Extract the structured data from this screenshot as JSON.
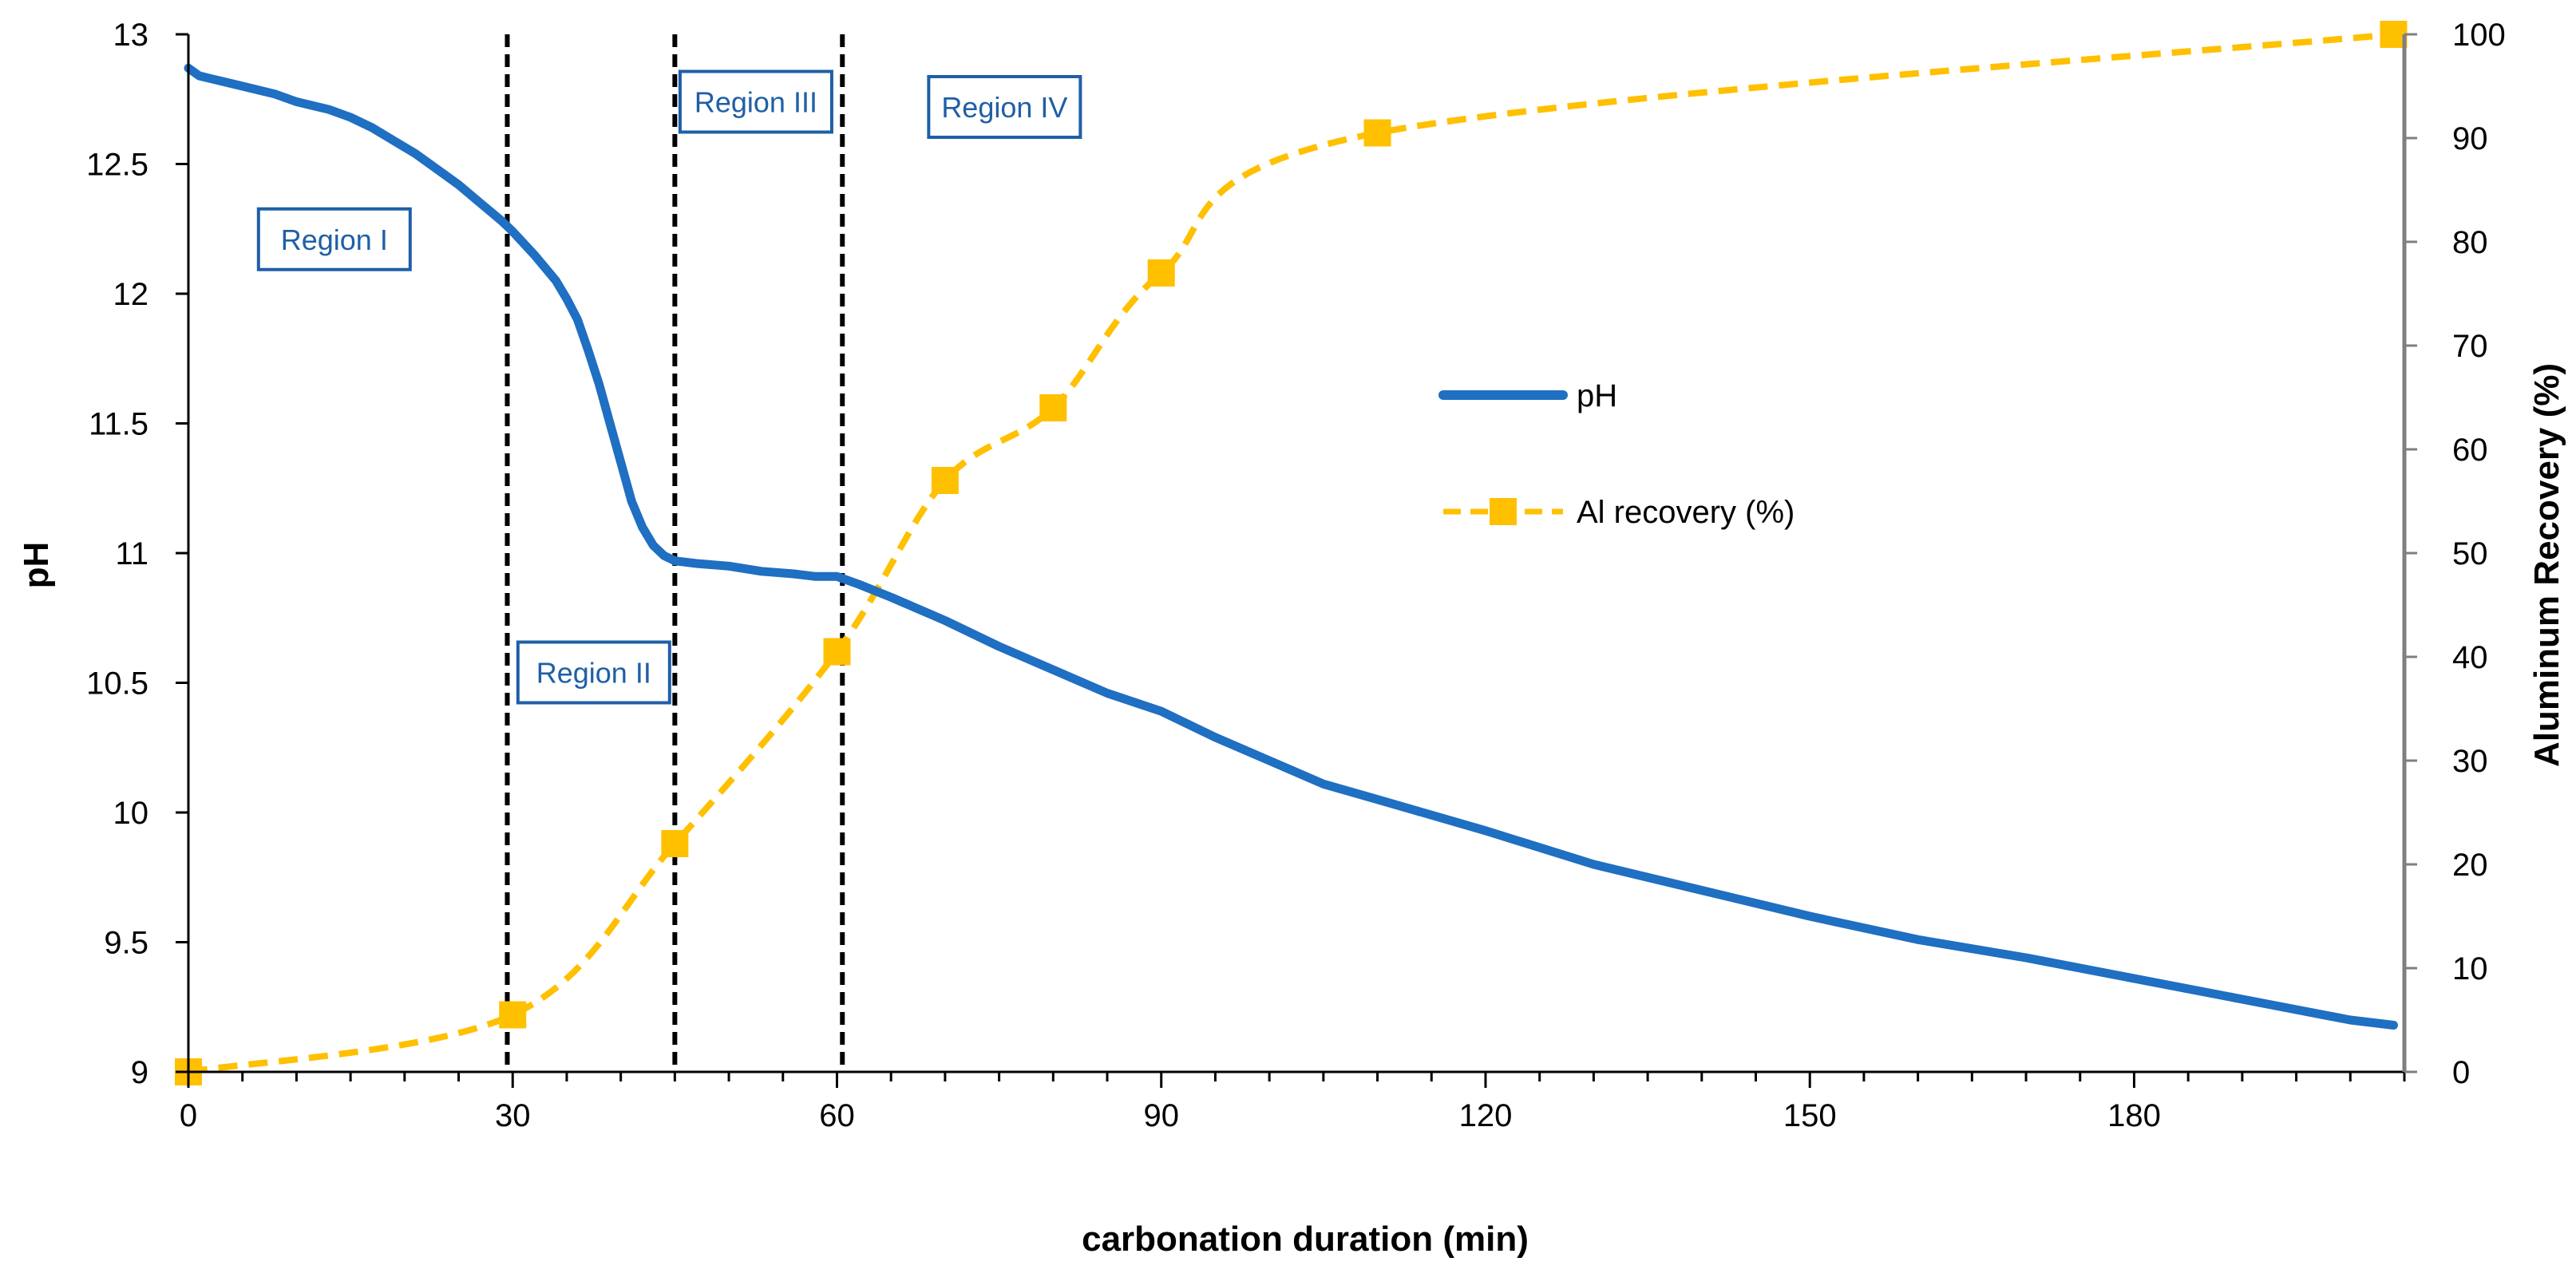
{
  "chart_data": {
    "type": "line",
    "xlabel": "carbonation duration (min)",
    "ylabel_left": "pH",
    "ylabel_right": "Aluminum Recovery (%)",
    "xlim": [
      0,
      205
    ],
    "ylim_left": [
      9,
      13
    ],
    "ylim_right": [
      0,
      100
    ],
    "x_ticks": [
      0,
      30,
      60,
      90,
      120,
      150,
      180
    ],
    "y_left_ticks": [
      9,
      9.5,
      10,
      10.5,
      11,
      11.5,
      12,
      12.5,
      13
    ],
    "y_left_tick_labels": [
      "9",
      "9.5",
      "10",
      "10.5",
      "11",
      "11.5",
      "12",
      "12.5",
      "13"
    ],
    "y_right_ticks": [
      0,
      10,
      20,
      30,
      40,
      50,
      60,
      70,
      80,
      90,
      100
    ],
    "vertical_lines": [
      29.5,
      45,
      60.5
    ],
    "regions": [
      {
        "label": "Region I",
        "x": 13.5,
        "y": 12.21
      },
      {
        "label": "Region II",
        "x": 37.5,
        "y": 10.54
      },
      {
        "label": "Region III",
        "x": 52.5,
        "y": 12.74
      },
      {
        "label": "Region IV",
        "x": 75.5,
        "y": 12.72
      }
    ],
    "series": [
      {
        "name": "pH",
        "axis": "left",
        "color": "#1f6fc2",
        "style": "solid",
        "x": [
          0,
          1,
          2,
          3,
          5,
          8,
          10,
          13,
          15,
          17,
          19,
          21,
          23,
          25,
          27,
          29,
          30,
          32,
          34,
          35,
          36,
          37,
          38,
          39,
          40,
          41,
          42,
          43,
          44,
          45,
          47,
          50,
          53,
          56,
          58,
          60,
          62,
          65,
          70,
          75,
          80,
          85,
          90,
          95,
          100,
          105,
          110,
          120,
          130,
          140,
          150,
          160,
          170,
          180,
          190,
          200,
          204
        ],
        "y": [
          12.87,
          12.84,
          12.83,
          12.82,
          12.8,
          12.77,
          12.74,
          12.71,
          12.68,
          12.64,
          12.59,
          12.54,
          12.48,
          12.42,
          12.35,
          12.28,
          12.24,
          12.15,
          12.05,
          11.98,
          11.9,
          11.78,
          11.65,
          11.5,
          11.35,
          11.2,
          11.1,
          11.03,
          10.99,
          10.97,
          10.96,
          10.95,
          10.93,
          10.92,
          10.91,
          10.91,
          10.88,
          10.83,
          10.74,
          10.64,
          10.55,
          10.46,
          10.39,
          10.29,
          10.2,
          10.11,
          10.05,
          9.93,
          9.8,
          9.7,
          9.6,
          9.51,
          9.44,
          9.36,
          9.28,
          9.2,
          9.18
        ]
      },
      {
        "name": "Al recovery (%)",
        "axis": "right",
        "color": "#ffc000",
        "style": "dashed",
        "x": [
          0,
          30,
          45,
          60,
          70,
          80,
          90,
          110,
          204
        ],
        "y": [
          0,
          5.5,
          22,
          40.5,
          57,
          64,
          77,
          90.5,
          100
        ]
      }
    ]
  }
}
